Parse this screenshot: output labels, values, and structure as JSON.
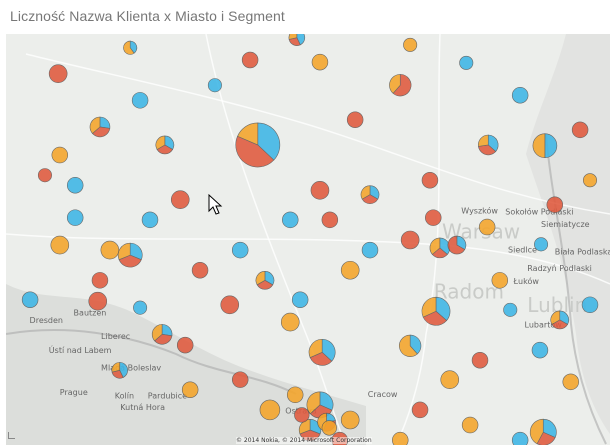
{
  "title": "Liczność Nazwa Klienta x Miasto i Segment",
  "attribution": "© 2014 Nokia, © 2014 Microsoft Corporation",
  "colors": {
    "segment_1": "#3db6e6",
    "segment_2": "#e0593d",
    "segment_3": "#f5a52a"
  },
  "map_labels": [
    {
      "text": "Warsaw",
      "lat": 52.25,
      "lon": 21.05,
      "big": true
    },
    {
      "text": "Lublin",
      "lat": 51.23,
      "lon": 22.6,
      "big": true
    },
    {
      "text": "Radom",
      "lat": 51.42,
      "lon": 20.9,
      "big": true
    },
    {
      "text": "Dresden",
      "lat": 51.08,
      "lon": 13.55
    },
    {
      "text": "Prague",
      "lat": 50.08,
      "lon": 14.1
    },
    {
      "text": "Cracow",
      "lat": 50.05,
      "lon": 19.7
    },
    {
      "text": "Biała Podlaska",
      "lat": 52.03,
      "lon": 23.1
    },
    {
      "text": "Radzyń Podlaski",
      "lat": 51.8,
      "lon": 22.6
    },
    {
      "text": "Siedlce",
      "lat": 52.18,
      "lon": 22.25
    },
    {
      "text": "Łuków",
      "lat": 51.95,
      "lon": 22.35
    },
    {
      "text": "Lubartów",
      "lat": 51.47,
      "lon": 22.55
    },
    {
      "text": "Sokołów Podlaski",
      "lat": 52.42,
      "lon": 22.2
    },
    {
      "text": "Siemiatycze",
      "lat": 52.45,
      "lon": 22.85
    },
    {
      "text": "Wyszków",
      "lat": 52.6,
      "lon": 21.4
    },
    {
      "text": "Ústí nad Labem",
      "lat": 50.66,
      "lon": 13.9
    },
    {
      "text": "Liberec",
      "lat": 50.77,
      "lon": 14.85
    },
    {
      "text": "Mladá Boleslav",
      "lat": 50.42,
      "lon": 14.85
    },
    {
      "text": "Kolín",
      "lat": 50.03,
      "lon": 15.1
    },
    {
      "text": "Pardubice",
      "lat": 50.03,
      "lon": 15.7
    },
    {
      "text": "Kutná Hora",
      "lat": 49.95,
      "lon": 15.2
    },
    {
      "text": "Ostrava",
      "lat": 49.82,
      "lon": 18.2
    },
    {
      "text": "Bautzen",
      "lat": 51.18,
      "lon": 14.35
    }
  ],
  "chart_data": {
    "type": "pie-map",
    "bubbles": [
      {
        "lat": 53.55,
        "lon": 17.7,
        "v": [
          20,
          24,
          10
        ]
      },
      {
        "lat": 55.04,
        "lon": 18.41,
        "v": [
          3,
          2,
          2
        ]
      },
      {
        "lat": 54.54,
        "lon": 14.07,
        "v": [
          0,
          9,
          0
        ]
      },
      {
        "lat": 53.8,
        "lon": 14.83,
        "v": [
          3,
          4,
          4
        ]
      },
      {
        "lat": 54.9,
        "lon": 15.38,
        "v": [
          2,
          0,
          3
        ]
      },
      {
        "lat": 54.38,
        "lon": 20.29,
        "v": [
          0,
          8,
          5
        ]
      },
      {
        "lat": 54.69,
        "lon": 21.49,
        "v": [
          5,
          0,
          0
        ]
      },
      {
        "lat": 53.54,
        "lon": 22.92,
        "v": [
          8,
          0,
          8
        ]
      },
      {
        "lat": 53.55,
        "lon": 21.89,
        "v": [
          4,
          4,
          3
        ]
      },
      {
        "lat": 52.92,
        "lon": 18.83,
        "v": [
          0,
          9,
          0
        ]
      },
      {
        "lat": 52.09,
        "lon": 17.38,
        "v": [
          7,
          0,
          0
        ]
      },
      {
        "lat": 52.02,
        "lon": 15.38,
        "v": [
          5,
          6,
          5
        ]
      },
      {
        "lat": 52.54,
        "lon": 14.38,
        "v": [
          7,
          0,
          0
        ]
      },
      {
        "lat": 52.23,
        "lon": 20.47,
        "v": [
          0,
          9,
          0
        ]
      },
      {
        "lat": 52.54,
        "lon": 20.89,
        "v": [
          0,
          7,
          0
        ]
      },
      {
        "lat": 52.12,
        "lon": 21.01,
        "v": [
          4,
          3,
          4
        ]
      },
      {
        "lat": 52.41,
        "lon": 21.87,
        "v": [
          0,
          0,
          7
        ]
      },
      {
        "lat": 52.16,
        "lon": 21.32,
        "v": [
          3,
          6,
          0
        ]
      },
      {
        "lat": 52.17,
        "lon": 22.85,
        "v": [
          5,
          0,
          0
        ]
      },
      {
        "lat": 51.24,
        "lon": 20.94,
        "v": [
          8,
          7,
          7
        ]
      },
      {
        "lat": 49.56,
        "lon": 22.89,
        "v": [
          6,
          5,
          8
        ]
      },
      {
        "lat": 50.26,
        "lon": 23.39,
        "v": [
          0,
          0,
          7
        ]
      },
      {
        "lat": 51.26,
        "lon": 22.29,
        "v": [
          5,
          0,
          0
        ]
      },
      {
        "lat": 50.67,
        "lon": 18.87,
        "v": [
          7,
          6,
          6
        ]
      },
      {
        "lat": 50.76,
        "lon": 20.47,
        "v": [
          5,
          0,
          8
        ]
      },
      {
        "lat": 51.09,
        "lon": 18.29,
        "v": [
          0,
          0,
          9
        ]
      },
      {
        "lat": 50.92,
        "lon": 15.96,
        "v": [
          3,
          4,
          4
        ]
      },
      {
        "lat": 51.38,
        "lon": 14.79,
        "v": [
          0,
          9,
          0
        ]
      },
      {
        "lat": 51.29,
        "lon": 15.56,
        "v": [
          5,
          0,
          0
        ]
      },
      {
        "lat": 50.77,
        "lon": 16.38,
        "v": [
          0,
          7,
          0
        ]
      },
      {
        "lat": 50.08,
        "lon": 18.38,
        "v": [
          0,
          0,
          7
        ]
      },
      {
        "lat": 49.94,
        "lon": 18.83,
        "v": [
          6,
          6,
          7
        ]
      },
      {
        "lat": 49.73,
        "lon": 19.38,
        "v": [
          0,
          0,
          9
        ]
      },
      {
        "lat": 49.66,
        "lon": 21.56,
        "v": [
          0,
          0,
          7
        ]
      },
      {
        "lat": 49.45,
        "lon": 22.47,
        "v": [
          7,
          0,
          0
        ]
      },
      {
        "lat": 50.42,
        "lon": 15.19,
        "v": [
          3,
          2,
          2
        ]
      },
      {
        "lat": 49.45,
        "lon": 20.29,
        "v": [
          0,
          0,
          7
        ]
      },
      {
        "lat": 53.41,
        "lon": 14.1,
        "v": [
          0,
          0,
          7
        ]
      },
      {
        "lat": 53.13,
        "lon": 13.83,
        "v": [
          0,
          5,
          0
        ]
      },
      {
        "lat": 52.99,
        "lon": 14.38,
        "v": [
          7,
          0,
          0
        ]
      },
      {
        "lat": 53.55,
        "lon": 16.01,
        "v": [
          3,
          3,
          3
        ]
      },
      {
        "lat": 54.38,
        "lon": 16.92,
        "v": [
          5,
          0,
          0
        ]
      },
      {
        "lat": 54.73,
        "lon": 17.56,
        "v": [
          0,
          7,
          0
        ]
      },
      {
        "lat": 54.7,
        "lon": 18.83,
        "v": [
          0,
          0,
          7
        ]
      },
      {
        "lat": 53.9,
        "lon": 19.47,
        "v": [
          0,
          7,
          0
        ]
      },
      {
        "lat": 54.94,
        "lon": 20.47,
        "v": [
          0,
          0,
          5
        ]
      },
      {
        "lat": 54.24,
        "lon": 22.47,
        "v": [
          7,
          0,
          0
        ]
      },
      {
        "lat": 53.76,
        "lon": 23.56,
        "v": [
          0,
          7,
          0
        ]
      },
      {
        "lat": 53.06,
        "lon": 23.74,
        "v": [
          0,
          0,
          5
        ]
      },
      {
        "lat": 52.72,
        "lon": 23.1,
        "v": [
          0,
          7,
          0
        ]
      },
      {
        "lat": 51.67,
        "lon": 22.1,
        "v": [
          0,
          0,
          7
        ]
      },
      {
        "lat": 51.12,
        "lon": 23.19,
        "v": [
          3,
          3,
          3
        ]
      },
      {
        "lat": 51.33,
        "lon": 23.74,
        "v": [
          7,
          0,
          0
        ]
      },
      {
        "lat": 51.81,
        "lon": 19.38,
        "v": [
          0,
          0,
          9
        ]
      },
      {
        "lat": 52.09,
        "lon": 19.74,
        "v": [
          7,
          0,
          0
        ]
      },
      {
        "lat": 51.81,
        "lon": 16.65,
        "v": [
          0,
          7,
          0
        ]
      },
      {
        "lat": 51.33,
        "lon": 17.19,
        "v": [
          0,
          9,
          0
        ]
      },
      {
        "lat": 51.67,
        "lon": 17.83,
        "v": [
          3,
          3,
          3
        ]
      },
      {
        "lat": 51.4,
        "lon": 18.47,
        "v": [
          7,
          0,
          0
        ]
      },
      {
        "lat": 50.15,
        "lon": 16.47,
        "v": [
          0,
          0,
          7
        ]
      },
      {
        "lat": 50.29,
        "lon": 17.38,
        "v": [
          0,
          7,
          0
        ]
      },
      {
        "lat": 49.87,
        "lon": 17.92,
        "v": [
          0,
          0,
          11
        ]
      },
      {
        "lat": 49.59,
        "lon": 18.65,
        "v": [
          4,
          5,
          4
        ]
      },
      {
        "lat": 49.45,
        "lon": 19.19,
        "v": [
          0,
          7,
          0
        ]
      },
      {
        "lat": 49.87,
        "lon": 20.65,
        "v": [
          0,
          7,
          0
        ]
      },
      {
        "lat": 50.29,
        "lon": 21.19,
        "v": [
          0,
          0,
          9
        ]
      },
      {
        "lat": 50.56,
        "lon": 21.74,
        "v": [
          0,
          7,
          0
        ]
      },
      {
        "lat": 50.7,
        "lon": 22.83,
        "v": [
          7,
          0,
          0
        ]
      },
      {
        "lat": 52.79,
        "lon": 16.29,
        "v": [
          0,
          9,
          0
        ]
      },
      {
        "lat": 52.51,
        "lon": 15.74,
        "v": [
          7,
          0,
          0
        ]
      },
      {
        "lat": 52.09,
        "lon": 15.01,
        "v": [
          0,
          0,
          9
        ]
      },
      {
        "lat": 51.67,
        "lon": 14.83,
        "v": [
          0,
          7,
          0
        ]
      },
      {
        "lat": 51.4,
        "lon": 13.56,
        "v": [
          7,
          0,
          0
        ]
      },
      {
        "lat": 52.16,
        "lon": 14.1,
        "v": [
          0,
          0,
          9
        ]
      },
      {
        "lat": 52.51,
        "lon": 18.29,
        "v": [
          7,
          0,
          0
        ]
      },
      {
        "lat": 52.51,
        "lon": 19.01,
        "v": [
          0,
          7,
          0
        ]
      },
      {
        "lat": 52.86,
        "lon": 19.74,
        "v": [
          3,
          3,
          3
        ]
      },
      {
        "lat": 53.06,
        "lon": 20.83,
        "v": [
          0,
          7,
          0
        ]
      },
      {
        "lat": 54.17,
        "lon": 15.56,
        "v": [
          7,
          0,
          0
        ]
      },
      {
        "lat": 49.7,
        "lon": 18.95,
        "v": [
          2,
          3,
          4
        ]
      },
      {
        "lat": 49.8,
        "lon": 18.5,
        "v": [
          0,
          6,
          0
        ]
      },
      {
        "lat": 49.62,
        "lon": 19.0,
        "v": [
          0,
          0,
          6
        ]
      }
    ]
  }
}
